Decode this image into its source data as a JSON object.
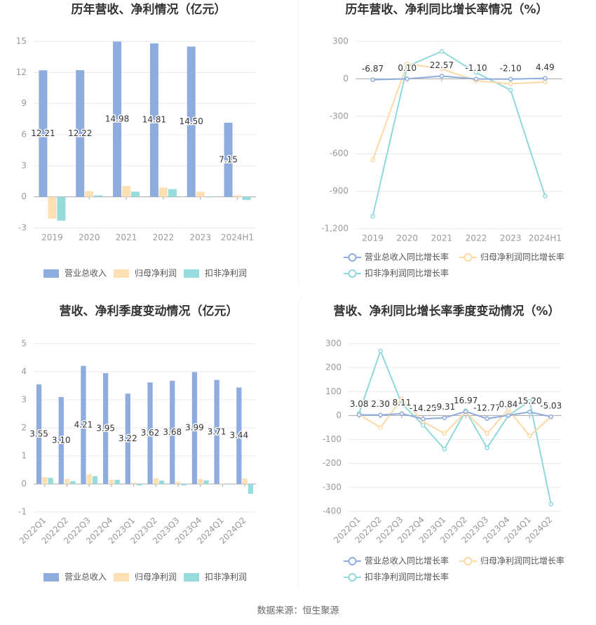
{
  "chart_data": [
    {
      "type": "bar",
      "title": "历年营收、净利情况（亿元）",
      "categories": [
        "2019",
        "2020",
        "2021",
        "2022",
        "2023",
        "2024H1"
      ],
      "series": [
        {
          "name": "营业总收入",
          "color": "#8eacdd",
          "values": [
            12.21,
            12.22,
            14.98,
            14.81,
            14.5,
            7.15
          ],
          "value_labels": [
            "12.21",
            "12.22",
            "14.98",
            "14.81",
            "14.50",
            "7.15"
          ]
        },
        {
          "name": "归母净利润",
          "color": "#fde0b4",
          "values": [
            -2.1,
            0.55,
            1.05,
            0.9,
            0.5,
            0.15
          ]
        },
        {
          "name": "扣非净利润",
          "color": "#96dcdc",
          "values": [
            -2.3,
            0.15,
            0.5,
            0.75,
            0.05,
            -0.3
          ]
        }
      ],
      "ylim": [
        -3,
        15
      ],
      "yticks": [
        -3,
        0,
        3,
        6,
        9,
        12,
        15
      ],
      "grid": true
    },
    {
      "type": "line",
      "title": "历年营收、净利同比增长率情况（%）",
      "categories": [
        "2019",
        "2020",
        "2021",
        "2022",
        "2023",
        "2024H1"
      ],
      "series": [
        {
          "name": "营业总收入同比增长率",
          "color": "#8eacdd",
          "values": [
            -6.87,
            0.1,
            22.57,
            -1.1,
            -2.1,
            4.49
          ],
          "value_labels": [
            "-6.87",
            "0.10",
            "22.57",
            "-1.10",
            "-2.10",
            "4.49"
          ]
        },
        {
          "name": "归母净利润同比增长率",
          "color": "#fdd9a3",
          "values": [
            -650,
            120,
            80,
            -15,
            -40,
            -25
          ]
        },
        {
          "name": "扣非净利润同比增长率",
          "color": "#8fd8dc",
          "values": [
            -1100,
            100,
            220,
            50,
            -90,
            -940
          ]
        }
      ],
      "ylim": [
        -1200,
        300
      ],
      "yticks": [
        {
          "value": -1200,
          "label": "-1,200"
        },
        -900,
        -600,
        -300,
        0,
        300
      ],
      "grid": true
    },
    {
      "type": "bar",
      "title": "营收、净利季度变动情况（亿元）",
      "categories": [
        "2022Q1",
        "2022Q2",
        "2022Q3",
        "2022Q4",
        "2023Q1",
        "2023Q2",
        "2023Q3",
        "2023Q4",
        "2024Q1",
        "2024Q2"
      ],
      "series": [
        {
          "name": "营业总收入",
          "color": "#8eacdd",
          "values": [
            3.55,
            3.1,
            4.21,
            3.95,
            3.22,
            3.62,
            3.68,
            3.99,
            3.71,
            3.44
          ],
          "value_labels": [
            "3.55",
            "3.10",
            "4.21",
            "3.95",
            "3.22",
            "3.62",
            "3.68",
            "3.99",
            "3.71",
            "3.44"
          ]
        },
        {
          "name": "归母净利润",
          "color": "#fde0b4",
          "values": [
            0.25,
            0.18,
            0.35,
            0.15,
            0.05,
            0.2,
            0.08,
            0.18,
            0.02,
            0.2
          ]
        },
        {
          "name": "扣非净利润",
          "color": "#96dcdc",
          "values": [
            0.22,
            0.1,
            0.28,
            0.15,
            -0.05,
            0.12,
            -0.05,
            0.13,
            -0.02,
            -0.35
          ]
        }
      ],
      "ylim": [
        -1,
        5
      ],
      "yticks": [
        -1,
        0,
        1,
        2,
        3,
        4,
        5
      ],
      "grid": true
    },
    {
      "type": "line",
      "title": "营收、净利同比增长率季度变动情况（%）",
      "categories": [
        "2022Q1",
        "2022Q2",
        "2022Q3",
        "2022Q4",
        "2023Q1",
        "2023Q2",
        "2023Q3",
        "2023Q4",
        "2024Q1",
        "2024Q2"
      ],
      "series": [
        {
          "name": "营业总收入同比增长率",
          "color": "#8eacdd",
          "values": [
            3.08,
            2.3,
            8.11,
            -14.25,
            -9.31,
            16.97,
            -12.77,
            0.84,
            15.2,
            -5.03
          ],
          "value_labels": [
            "3.08",
            "2.30",
            "8.11",
            "-14.25",
            "-9.31",
            "16.97",
            "-12.77",
            "0.84",
            "15.20",
            "-5.03"
          ]
        },
        {
          "name": "归母净利润同比增长率",
          "color": "#fdd9a3",
          "values": [
            5,
            -50,
            70,
            -25,
            -75,
            15,
            -75,
            25,
            -85,
            -5
          ]
        },
        {
          "name": "扣非净利润同比增长率",
          "color": "#8fd8dc",
          "values": [
            10,
            270,
            50,
            -40,
            -140,
            20,
            -135,
            0,
            60,
            -370
          ]
        }
      ],
      "ylim": [
        -400,
        300
      ],
      "yticks": [
        -400,
        -300,
        -200,
        -100,
        0,
        100,
        200,
        300
      ],
      "grid": true
    }
  ],
  "source": "数据来源：恒生聚源"
}
